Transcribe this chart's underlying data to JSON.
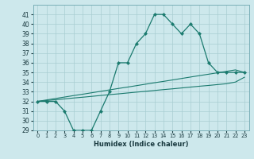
{
  "x": [
    0,
    1,
    2,
    3,
    4,
    5,
    6,
    7,
    8,
    9,
    10,
    11,
    12,
    13,
    14,
    15,
    16,
    17,
    18,
    19,
    20,
    21,
    22,
    23
  ],
  "y_main": [
    32,
    32,
    32,
    31,
    29,
    29,
    29,
    31,
    33,
    36,
    36,
    38,
    39,
    41,
    41,
    40,
    39,
    40,
    39,
    36,
    35,
    35,
    35,
    35
  ],
  "y_line1": [
    32.0,
    32.09,
    32.17,
    32.26,
    32.35,
    32.43,
    32.52,
    32.61,
    32.7,
    32.78,
    32.87,
    32.96,
    33.04,
    33.13,
    33.22,
    33.3,
    33.39,
    33.48,
    33.57,
    33.65,
    33.74,
    33.83,
    34.0,
    34.5
  ],
  "y_line2": [
    32.0,
    32.15,
    32.3,
    32.45,
    32.6,
    32.74,
    32.89,
    33.04,
    33.19,
    33.34,
    33.48,
    33.63,
    33.78,
    33.93,
    34.07,
    34.22,
    34.37,
    34.52,
    34.67,
    34.81,
    34.96,
    35.11,
    35.26,
    35.0
  ],
  "bg_color": "#cde8ec",
  "grid_color": "#a8cdd2",
  "line_color": "#1a7a6e",
  "xlabel": "Humidex (Indice chaleur)",
  "ylim": [
    29,
    42
  ],
  "xlim": [
    -0.5,
    23.5
  ],
  "yticks": [
    29,
    30,
    31,
    32,
    33,
    34,
    35,
    36,
    37,
    38,
    39,
    40,
    41
  ],
  "xticks": [
    0,
    1,
    2,
    3,
    4,
    5,
    6,
    7,
    8,
    9,
    10,
    11,
    12,
    13,
    14,
    15,
    16,
    17,
    18,
    19,
    20,
    21,
    22,
    23
  ]
}
